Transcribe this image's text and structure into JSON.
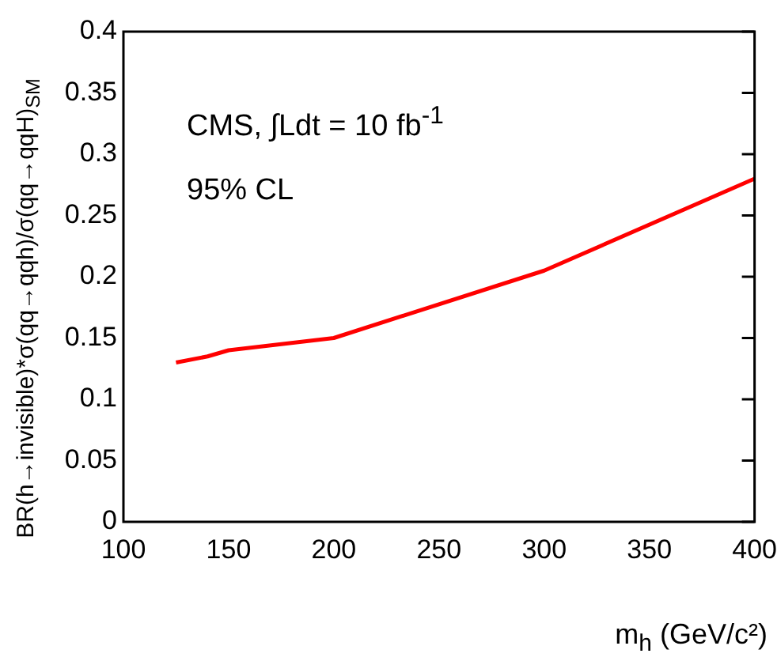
{
  "chart_data": {
    "type": "line",
    "xlabel": "m$_{h}$ (GeV/c²)",
    "ylabel": "BR(h→invisible)*σ(qq→qqh)/σ(qq→qqH)$_{SM}$",
    "annotations": [
      "CMS, ∫Ldt = 10 fb$^{-1}$",
      "95% CL"
    ],
    "x": [
      125,
      140,
      150,
      200,
      300,
      400
    ],
    "series": [
      {
        "color": "#ff0000",
        "values": [
          0.13,
          0.135,
          0.14,
          0.15,
          0.205,
          0.28
        ]
      }
    ],
    "xlim": [
      100,
      400
    ],
    "xticks": [
      100,
      150,
      200,
      250,
      300,
      350,
      400
    ],
    "ylim": [
      0,
      0.4
    ],
    "yticks": [
      0,
      0.05,
      0.1,
      0.15,
      0.2,
      0.25,
      0.3,
      0.35,
      0.4
    ],
    "grid": false,
    "legend": false,
    "marker": "none",
    "line_style": "solid"
  }
}
